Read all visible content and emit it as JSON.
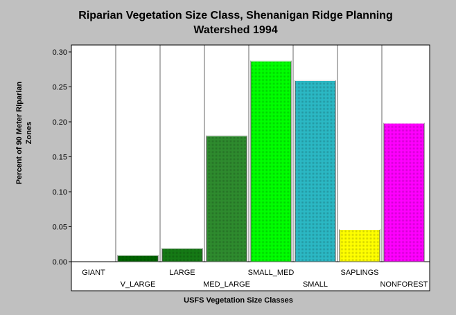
{
  "chart_data": {
    "type": "bar",
    "title_line1": "Riparian Vegetation Size Class, Shenanigan Ridge Planning",
    "title_line2": "Watershed 1994",
    "xlabel": "USFS Vegetation Size Classes",
    "ylabel_line1": "Percent of 90 Meter Riparian",
    "ylabel_line2": "Zones",
    "categories": [
      "GIANT",
      "V_LARGE",
      "LARGE",
      "MED_LARGE",
      "SMALL_MED",
      "SMALL",
      "SAPLINGS",
      "NONFOREST"
    ],
    "values": [
      0.0,
      0.009,
      0.019,
      0.18,
      0.287,
      0.259,
      0.046,
      0.198
    ],
    "bar_colors": [
      "#006400",
      "#006400",
      "#157a15",
      "#2e8b2e",
      "#00ff00",
      "#2bb8c4",
      "#ffff00",
      "#ff00ff"
    ],
    "ylim": [
      0,
      0.3
    ],
    "yticks": [
      "0.00",
      "0.05",
      "0.10",
      "0.15",
      "0.20",
      "0.25",
      "0.30"
    ],
    "grid": "vertical"
  }
}
